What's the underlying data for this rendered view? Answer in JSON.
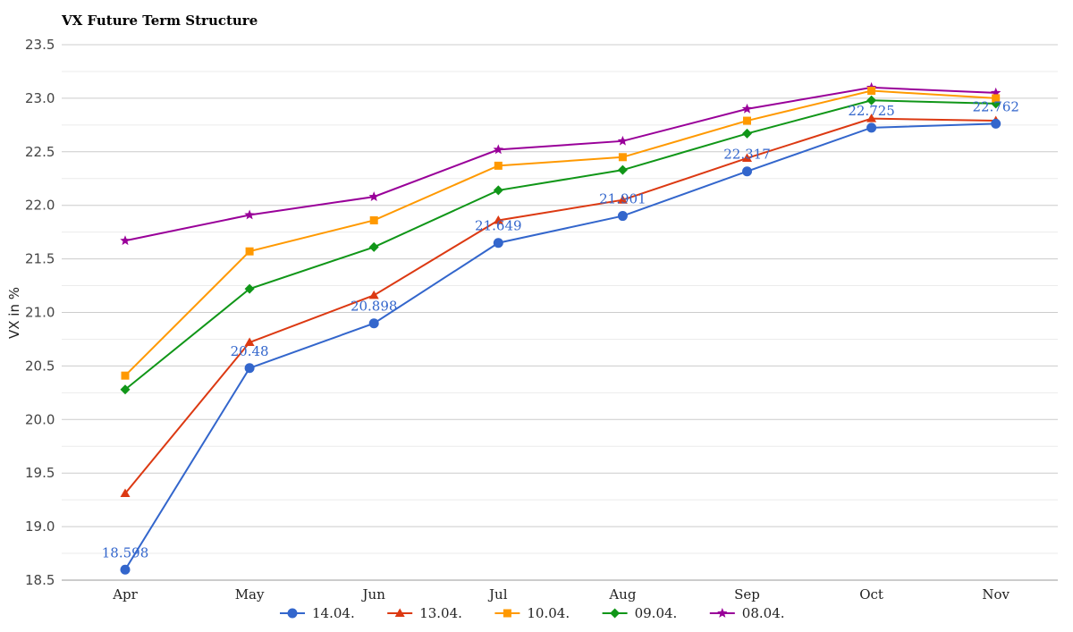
{
  "chart_data": {
    "type": "line",
    "title": "VX Future Term Structure",
    "xlabel": "",
    "ylabel": "VX in %",
    "categories": [
      "Apr",
      "May",
      "Jun",
      "Jul",
      "Aug",
      "Sep",
      "Oct",
      "Nov"
    ],
    "ylim": [
      18.5,
      23.5
    ],
    "yticks": [
      "18.5",
      "19.0",
      "19.5",
      "20.0",
      "20.5",
      "21.0",
      "21.5",
      "22.0",
      "22.5",
      "23.0",
      "23.5"
    ],
    "grid": true,
    "legend": "bottom",
    "series": [
      {
        "name": "14.04.",
        "color": "#3366cc",
        "marker": "circle",
        "values": [
          18.598,
          20.48,
          20.898,
          21.649,
          21.901,
          22.317,
          22.725,
          22.762
        ],
        "data_labels": [
          "18.598",
          "20.48",
          "20.898",
          "21.649",
          "21.901",
          "22.317",
          "22.725",
          "22.762"
        ]
      },
      {
        "name": "13.04.",
        "color": "#dc3912",
        "marker": "triangle",
        "values": [
          19.31,
          20.72,
          21.16,
          21.86,
          22.05,
          22.44,
          22.81,
          22.79
        ]
      },
      {
        "name": "10.04.",
        "color": "#ff9900",
        "marker": "square",
        "values": [
          20.41,
          21.57,
          21.86,
          22.37,
          22.45,
          22.79,
          23.07,
          23.0
        ]
      },
      {
        "name": "09.04.",
        "color": "#109618",
        "marker": "diamond",
        "values": [
          20.28,
          21.22,
          21.61,
          22.14,
          22.33,
          22.67,
          22.98,
          22.95
        ]
      },
      {
        "name": "08.04.",
        "color": "#990099",
        "marker": "star",
        "values": [
          21.67,
          21.91,
          22.08,
          22.52,
          22.6,
          22.9,
          23.1,
          23.05
        ]
      }
    ]
  }
}
